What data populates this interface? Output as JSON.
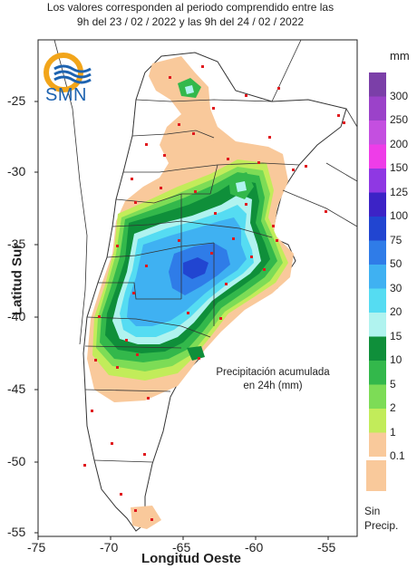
{
  "header": {
    "line1": "Los valores corresponden al periodo comprendido entre las",
    "line2": "9h del 23 / 02 / 2022  y las 9h del 24 / 02 / 2022"
  },
  "logo": {
    "text": "SMN"
  },
  "annotation": {
    "line1": "Precipitación acumulada",
    "line2": "en 24h (mm)"
  },
  "axes": {
    "xlabel": "Longitud Oeste",
    "ylabel": "Latitud Sur",
    "xticks": [
      "-75",
      "-70",
      "-65",
      "-60",
      "-55"
    ],
    "yticks": [
      "-25",
      "-30",
      "-35",
      "-40",
      "-45",
      "-50",
      "-55"
    ]
  },
  "legend": {
    "unit": "mm",
    "no_precip_line1": "Sin",
    "no_precip_line2": "Precip.",
    "items": [
      {
        "label": "300",
        "color": "#7b3fa8"
      },
      {
        "label": "250",
        "color": "#9b42c9"
      },
      {
        "label": "200",
        "color": "#c44fe0"
      },
      {
        "label": "150",
        "color": "#ee3de8"
      },
      {
        "label": "125",
        "color": "#8f38e3"
      },
      {
        "label": "100",
        "color": "#3c23c6"
      },
      {
        "label": "75",
        "color": "#2145d1"
      },
      {
        "label": "50",
        "color": "#2f7ce8"
      },
      {
        "label": "30",
        "color": "#3fb1f2"
      },
      {
        "label": "20",
        "color": "#55dcf2"
      },
      {
        "label": "15",
        "color": "#b0f3ef"
      },
      {
        "label": "10",
        "color": "#0f8f3a"
      },
      {
        "label": "5",
        "color": "#33b84b"
      },
      {
        "label": "2",
        "color": "#7ddc56"
      },
      {
        "label": "1",
        "color": "#c2ec5a"
      },
      {
        "label": "0.1",
        "color": "#f9c99b"
      }
    ]
  }
}
